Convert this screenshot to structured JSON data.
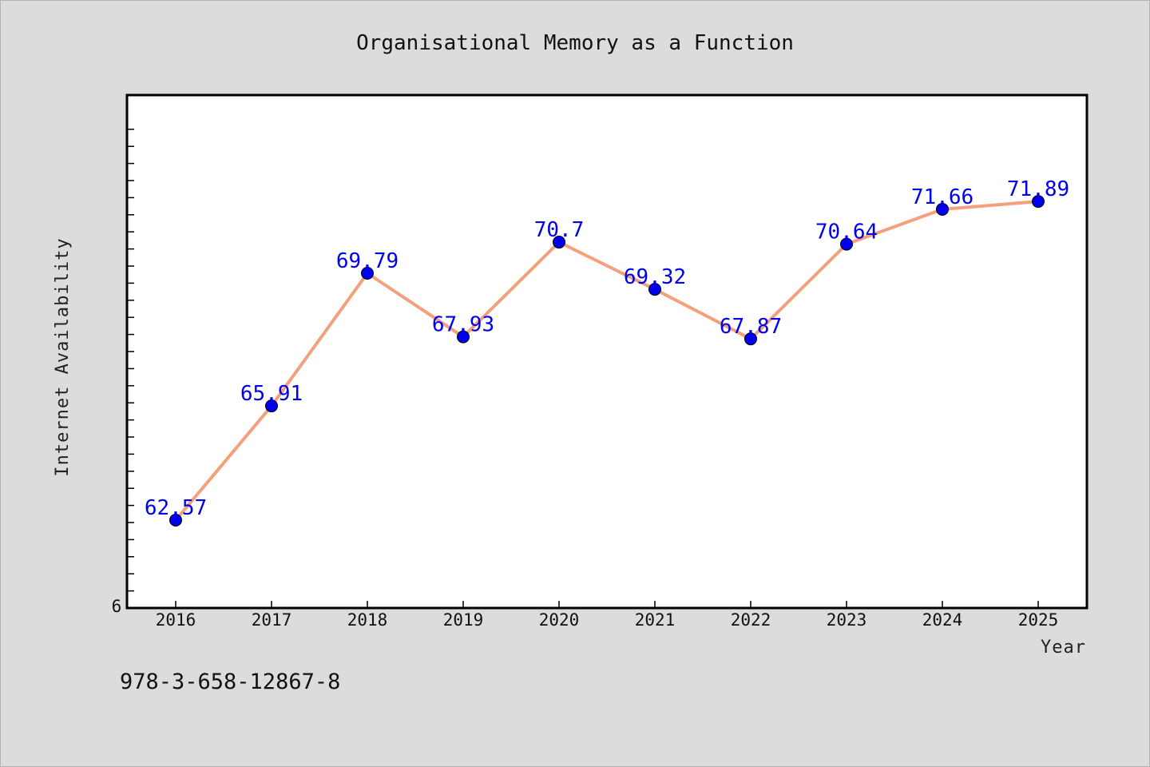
{
  "chart_data": {
    "type": "line",
    "title": "Organisational Memory as a Function",
    "xlabel": "Year",
    "ylabel": "Internet Availability",
    "x": [
      "2016",
      "2017",
      "2018",
      "2019",
      "2020",
      "2021",
      "2022",
      "2023",
      "2024",
      "2025"
    ],
    "series": [
      {
        "values": [
          62.57,
          65.91,
          69.79,
          67.93,
          70.7,
          69.32,
          67.87,
          70.64,
          71.66,
          71.89
        ]
      }
    ],
    "data_labels": [
      "62.57",
      "65.91",
      "69.79",
      "67.93",
      "70.7",
      "69.32",
      "67.87",
      "70.64",
      "71.66",
      "71.89"
    ],
    "ylim": [
      60,
      75
    ],
    "y_tick_labels": [
      "6"
    ],
    "grid": false,
    "legend": "none",
    "line_color": "#f4a07c",
    "marker_color": "#0000ee",
    "label_color": "#0000ee",
    "plot_background": "#ffffff",
    "page_background": "#dcdcdc"
  },
  "footnote": "978-3-658-12867-8"
}
